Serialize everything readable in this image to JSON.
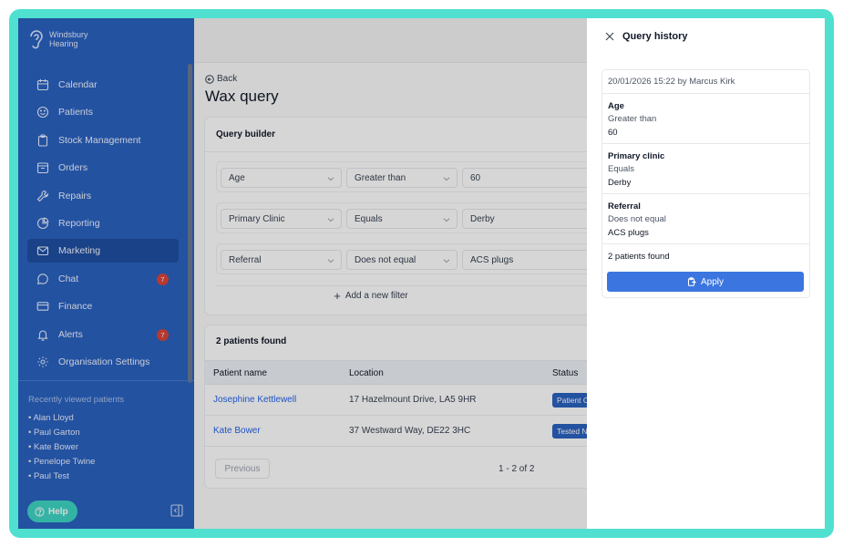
{
  "brand": {
    "line1": "Windsbury",
    "line2": "Hearing"
  },
  "sidebar": {
    "items": [
      {
        "label": "Calendar",
        "icon": "calendar-icon"
      },
      {
        "label": "Patients",
        "icon": "smiley-icon"
      },
      {
        "label": "Stock Management",
        "icon": "clipboard-icon"
      },
      {
        "label": "Orders",
        "icon": "box-icon"
      },
      {
        "label": "Repairs",
        "icon": "wrench-icon"
      },
      {
        "label": "Reporting",
        "icon": "pie-chart-icon"
      },
      {
        "label": "Marketing",
        "icon": "mail-icon",
        "active": true
      },
      {
        "label": "Chat",
        "icon": "chat-icon",
        "badge": "7"
      },
      {
        "label": "Finance",
        "icon": "card-icon"
      },
      {
        "label": "Alerts",
        "icon": "bell-icon",
        "badge": "7"
      },
      {
        "label": "Organisation Settings",
        "icon": "gear-icon"
      }
    ],
    "recent_title": "Recently viewed patients",
    "recent": [
      "• Alan Lloyd",
      "• Paul Garton",
      "• Kate Bower",
      "• Penelope Twine",
      "• Paul Test"
    ],
    "help_label": "Help"
  },
  "main": {
    "back_label": "Back",
    "title": "Wax query",
    "query_builder": {
      "title": "Query builder",
      "filters": [
        {
          "field": "Age",
          "operator": "Greater than",
          "value": "60"
        },
        {
          "field": "Primary Clinic",
          "operator": "Equals",
          "value": "Derby"
        },
        {
          "field": "Referral",
          "operator": "Does not equal",
          "value": "ACS plugs"
        }
      ],
      "add_label": "Add a new filter"
    },
    "results": {
      "title": "2 patients found",
      "columns": [
        "Patient name",
        "Location",
        "Status"
      ],
      "rows": [
        {
          "name": "Josephine Kettlewell",
          "location": "17 Hazelmount Drive, LA5 9HR",
          "status": "Patient C"
        },
        {
          "name": "Kate Bower",
          "location": "37 Westward Way, DE22 3HC",
          "status": "Tested N"
        }
      ],
      "previous_label": "Previous",
      "pager": "1 - 2 of 2"
    }
  },
  "drawer": {
    "title": "Query history",
    "meta": "20/01/2026 15:22 by Marcus Kirk",
    "entries": [
      {
        "field": "Age",
        "operator": "Greater than",
        "value": "60"
      },
      {
        "field": "Primary clinic",
        "operator": "Equals",
        "value": "Derby"
      },
      {
        "field": "Referral",
        "operator": "Does not equal",
        "value": "ACS plugs"
      }
    ],
    "found": "2 patients found",
    "apply_label": "Apply"
  },
  "colors": {
    "sidebar": "#2a62c0",
    "accent": "#3b76e0",
    "frame": "#4fe0cf",
    "badge": "#d9443a"
  }
}
